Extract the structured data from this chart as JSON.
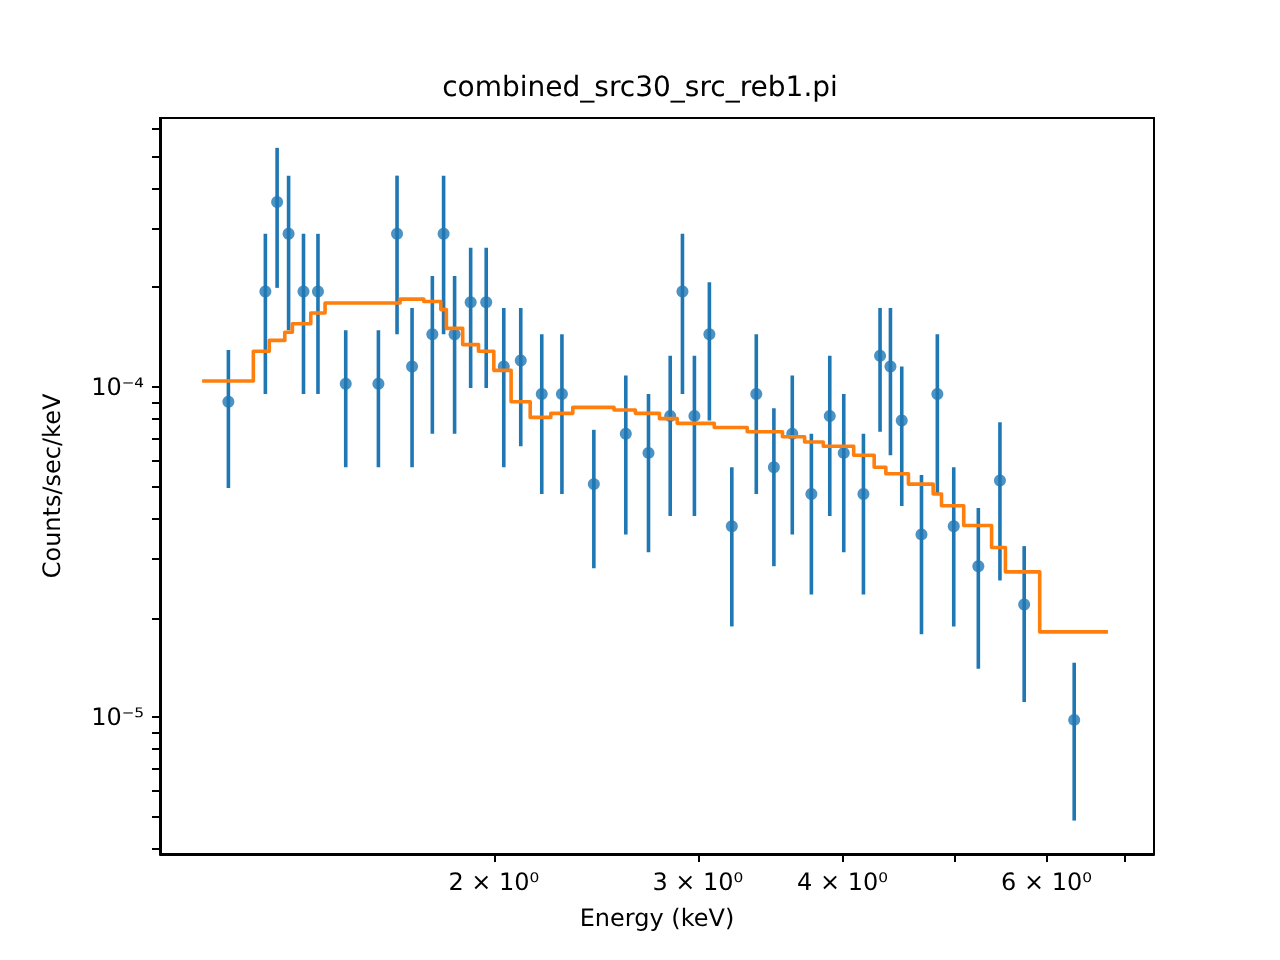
{
  "chart_data": {
    "type": "scatter",
    "title": "combined_src30_src_reb1.pi",
    "xlabel": "Energy (keV)",
    "ylabel": "Counts/sec/keV",
    "log": "xy",
    "xlim": [
      1.03,
      7.43
    ],
    "ylim": [
      3.85e-06,
      0.00065
    ],
    "xticks": [
      {
        "value": 2,
        "label": "2 × 10⁰"
      },
      {
        "value": 3,
        "label": "3 × 10⁰"
      },
      {
        "value": 4,
        "label": "4 × 10⁰"
      },
      {
        "value": 5,
        "label": null
      },
      {
        "value": 6,
        "label": "6 × 10⁰"
      },
      {
        "value": 7,
        "label": null
      }
    ],
    "yticks": [
      {
        "value": 4e-06,
        "label": null
      },
      {
        "value": 5e-06,
        "label": null
      },
      {
        "value": 6e-06,
        "label": null
      },
      {
        "value": 7e-06,
        "label": null
      },
      {
        "value": 8e-06,
        "label": null
      },
      {
        "value": 9e-06,
        "label": null
      },
      {
        "value": 1e-05,
        "label": "10⁻⁵"
      },
      {
        "value": 2e-05,
        "label": null
      },
      {
        "value": 3e-05,
        "label": null
      },
      {
        "value": 4e-05,
        "label": null
      },
      {
        "value": 5e-05,
        "label": null
      },
      {
        "value": 6e-05,
        "label": null
      },
      {
        "value": 7e-05,
        "label": null
      },
      {
        "value": 8e-05,
        "label": null
      },
      {
        "value": 9e-05,
        "label": null
      },
      {
        "value": 0.0001,
        "label": "10⁻⁴"
      },
      {
        "value": 0.0002,
        "label": null
      },
      {
        "value": 0.0003,
        "label": null
      },
      {
        "value": 0.0004,
        "label": null
      },
      {
        "value": 0.0005,
        "label": null
      },
      {
        "value": 0.0006,
        "label": null
      }
    ],
    "series": [
      {
        "color": "#1f77b4",
        "marker": "circle",
        "x": [
          1.18,
          1.27,
          1.3,
          1.33,
          1.37,
          1.41,
          1.49,
          1.59,
          1.65,
          1.7,
          1.77,
          1.81,
          1.85,
          1.91,
          1.97,
          2.04,
          2.11,
          2.2,
          2.29,
          2.44,
          2.6,
          2.72,
          2.84,
          2.91,
          2.98,
          3.07,
          3.21,
          3.37,
          3.49,
          3.62,
          3.76,
          3.9,
          4.01,
          4.17,
          4.31,
          4.4,
          4.5,
          4.68,
          4.83,
          4.99,
          5.24,
          5.47,
          5.74,
          6.34
        ],
        "values": [
          9e-05,
          0.000194,
          0.000362,
          0.00029,
          0.000194,
          0.000194,
          0.000102,
          0.000102,
          0.00029,
          0.000115,
          0.000144,
          0.00029,
          0.000144,
          0.00018,
          0.00018,
          0.000115,
          0.00012,
          9.5e-05,
          9.5e-05,
          5.07e-05,
          7.2e-05,
          6.3e-05,
          8.15e-05,
          0.000194,
          8.15e-05,
          0.000144,
          3.78e-05,
          9.5e-05,
          5.7e-05,
          7.2e-05,
          4.73e-05,
          8.15e-05,
          6.3e-05,
          4.73e-05,
          0.000124,
          0.000115,
          7.9e-05,
          3.57e-05,
          9.5e-05,
          3.78e-05,
          2.86e-05,
          5.2e-05,
          2.19e-05,
          9.8e-06
        ],
        "errors": [
          [
            4.93e-05,
            0.000129
          ],
          [
            9.5e-05,
            0.00029
          ],
          [
            0.000199,
            0.000528
          ],
          [
            0.000148,
            0.000435
          ],
          [
            9.5e-05,
            0.00029
          ],
          [
            9.5e-05,
            0.00029
          ],
          [
            5.7e-05,
            0.000148
          ],
          [
            5.7e-05,
            0.000148
          ],
          [
            0.000144,
            0.000435
          ],
          [
            5.7e-05,
            0.000173
          ],
          [
            7.2e-05,
            0.000216
          ],
          [
            0.000144,
            0.000435
          ],
          [
            7.2e-05,
            0.000216
          ],
          [
            9.9e-05,
            0.000263
          ],
          [
            9.9e-05,
            0.000263
          ],
          [
            5.7e-05,
            0.000173
          ],
          [
            6.6e-05,
            0.000173
          ],
          [
            4.73e-05,
            0.000144
          ],
          [
            4.73e-05,
            0.000144
          ],
          [
            2.82e-05,
            7.4e-05
          ],
          [
            3.57e-05,
            0.000108
          ],
          [
            3.15e-05,
            9.5e-05
          ],
          [
            4.06e-05,
            0.000124
          ],
          [
            9.5e-05,
            0.00029
          ],
          [
            4.06e-05,
            0.000124
          ],
          [
            7.9e-05,
            0.000207
          ],
          [
            1.88e-05,
            5.7e-05
          ],
          [
            4.73e-05,
            0.000144
          ],
          [
            2.86e-05,
            8.6e-05
          ],
          [
            3.57e-05,
            0.000108
          ],
          [
            2.35e-05,
            7.2e-05
          ],
          [
            4.06e-05,
            0.000124
          ],
          [
            3.15e-05,
            9.5e-05
          ],
          [
            2.35e-05,
            7.2e-05
          ],
          [
            7.3e-05,
            0.000173
          ],
          [
            6.2e-05,
            0.000173
          ],
          [
            4.35e-05,
            0.000115
          ],
          [
            1.78e-05,
            5.4e-05
          ],
          [
            4.73e-05,
            0.000144
          ],
          [
            1.88e-05,
            5.7e-05
          ],
          [
            1.4e-05,
            4.29e-05
          ],
          [
            2.59e-05,
            7.8e-05
          ],
          [
            1.11e-05,
            3.29e-05
          ],
          [
            4.86e-06,
            1.46e-05
          ]
        ]
      },
      {
        "type": "step",
        "color": "#ff7f0e",
        "marker": "none",
        "x": [
          1.12,
          1.24,
          1.28,
          1.32,
          1.34,
          1.39,
          1.43,
          1.66,
          1.74,
          1.8,
          1.82,
          1.88,
          1.94,
          2.0,
          2.07,
          2.15,
          2.24,
          2.34,
          2.54,
          2.65,
          2.78,
          2.88,
          3.1,
          3.31,
          3.55,
          3.71,
          3.85,
          4.09,
          4.26,
          4.36,
          4.56,
          4.79,
          4.87,
          5.09,
          5.38,
          5.53,
          5.92,
          6.78
        ],
        "values": [
          0.000104,
          0.000128,
          0.000138,
          0.000146,
          0.000155,
          0.000167,
          0.000179,
          0.000184,
          0.000181,
          0.000171,
          0.00015,
          0.000134,
          0.000128,
          0.000112,
          9e-05,
          8.07e-05,
          8.3e-05,
          8.65e-05,
          8.5e-05,
          8.3e-05,
          8e-05,
          7.74e-05,
          7.52e-05,
          7.3e-05,
          7.05e-05,
          6.8e-05,
          6.6e-05,
          6.2e-05,
          5.7e-05,
          5.45e-05,
          5.07e-05,
          4.73e-05,
          4.36e-05,
          3.8e-05,
          3.26e-05,
          2.75e-05,
          1.81e-05,
          1.81e-05
        ]
      }
    ]
  }
}
